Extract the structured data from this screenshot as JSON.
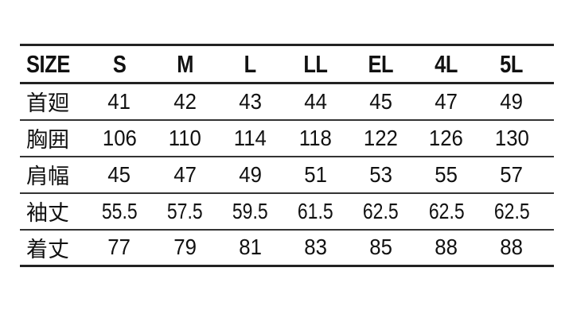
{
  "table": {
    "header": [
      "SIZE",
      "S",
      "M",
      "L",
      "LL",
      "EL",
      "4L",
      "5L"
    ],
    "rows": [
      {
        "label": "首廻",
        "values": [
          "41",
          "42",
          "43",
          "44",
          "45",
          "47",
          "49"
        ]
      },
      {
        "label": "胸囲",
        "values": [
          "106",
          "110",
          "114",
          "118",
          "122",
          "126",
          "130"
        ]
      },
      {
        "label": "肩幅",
        "values": [
          "45",
          "47",
          "49",
          "51",
          "53",
          "55",
          "57"
        ]
      },
      {
        "label": "袖丈",
        "values": [
          "55.5",
          "57.5",
          "59.5",
          "61.5",
          "62.5",
          "62.5",
          "62.5"
        ]
      },
      {
        "label": "着丈",
        "values": [
          "77",
          "79",
          "81",
          "83",
          "85",
          "88",
          "88"
        ]
      }
    ]
  }
}
